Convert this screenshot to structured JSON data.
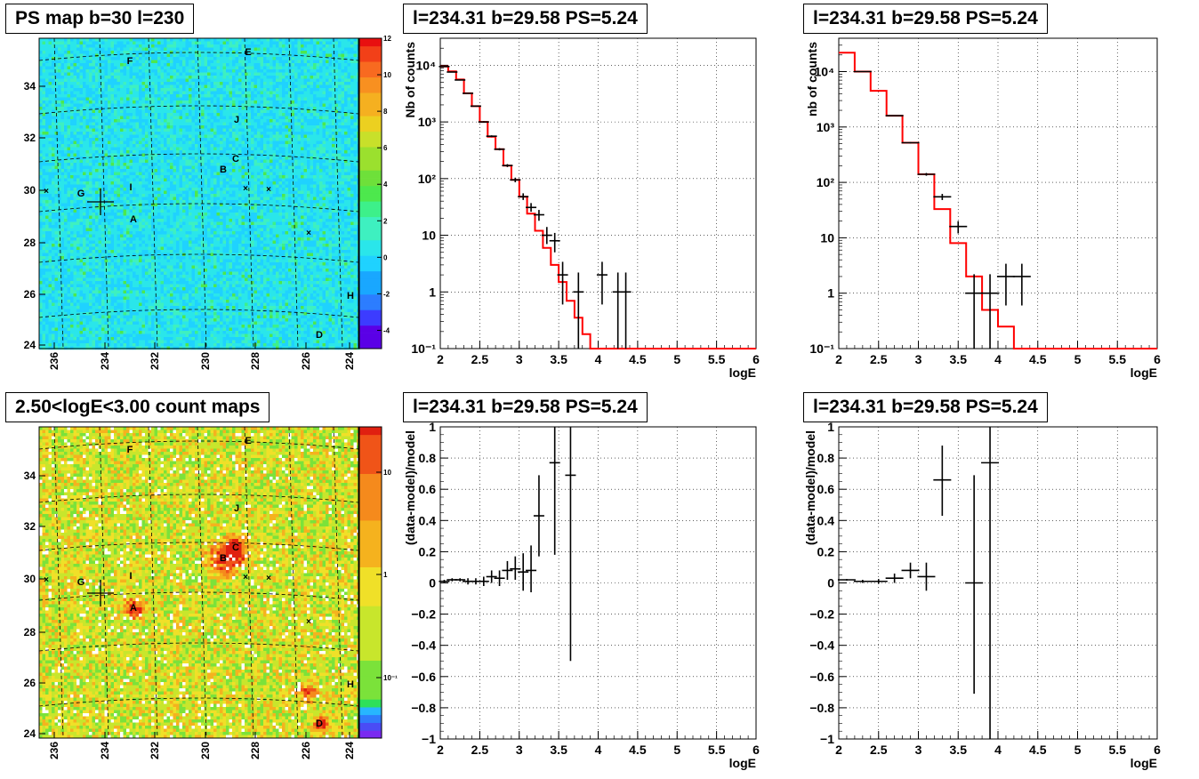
{
  "maps": [
    {
      "title": "PS map b=30 l=230",
      "palette": "ps",
      "x_ticks": [
        "236",
        "234",
        "232",
        "230",
        "228",
        "226",
        "224"
      ],
      "y_ticks": [
        "24",
        "26",
        "28",
        "30",
        "32",
        "34"
      ],
      "colorbar_ticks": [
        "-4",
        "-2",
        "0",
        "2",
        "4",
        "6",
        "8",
        "10",
        "12"
      ],
      "colorbar_range": [
        -5,
        12
      ],
      "sources": [
        "F",
        "E",
        "J",
        "C",
        "B",
        "G",
        "I",
        "A",
        "H",
        "D"
      ]
    },
    {
      "title": "2.50<logE<3.00 count maps",
      "palette": "counts",
      "x_ticks": [
        "236",
        "234",
        "232",
        "230",
        "228",
        "226",
        "224"
      ],
      "y_ticks": [
        "24",
        "26",
        "28",
        "30",
        "32",
        "34"
      ],
      "colorbar_ticks": [
        "10",
        "1",
        "10⁻¹"
      ],
      "colorbar_log": true,
      "sources": [
        "F",
        "E",
        "J",
        "C",
        "B",
        "G",
        "I",
        "A",
        "H",
        "D"
      ]
    }
  ],
  "colors": {
    "model": "#ff0000",
    "data": "#000000",
    "grid": "#000000"
  },
  "chart_data": [
    {
      "type": "line",
      "title": "l=234.31 b=29.58 PS=5.24",
      "xlabel": "logE",
      "ylabel": "Nb of counts",
      "xlim": [
        2,
        6
      ],
      "ylim": [
        0.1,
        30000
      ],
      "ylog": true,
      "grid": true,
      "x_ticks": [
        "2",
        "2.5",
        "3",
        "3.5",
        "4",
        "4.5",
        "5",
        "5.5",
        "6"
      ],
      "y_ticks": [
        "10⁻¹",
        "1",
        "10",
        "10²",
        "10³",
        "10⁴"
      ],
      "model_step": {
        "edges": [
          2.0,
          2.1,
          2.2,
          2.3,
          2.4,
          2.5,
          2.6,
          2.7,
          2.8,
          2.9,
          3.0,
          3.1,
          3.2,
          3.3,
          3.4,
          3.5,
          3.6,
          3.7,
          3.8,
          3.9,
          4.0,
          4.1,
          6.0
        ],
        "values": [
          9500,
          7800,
          5600,
          3200,
          1900,
          1000,
          550,
          330,
          170,
          95,
          48,
          24,
          12,
          6,
          3,
          1.5,
          0.7,
          0.35,
          0.18,
          0.1,
          0.07,
          0.1
        ]
      },
      "points": [
        {
          "x": 2.05,
          "y": 9500,
          "ylo": 9400,
          "yhi": 9600
        },
        {
          "x": 2.15,
          "y": 7600,
          "ylo": 7500,
          "yhi": 7700
        },
        {
          "x": 2.25,
          "y": 5500,
          "ylo": 5400,
          "yhi": 5600
        },
        {
          "x": 2.35,
          "y": 3200,
          "ylo": 3150,
          "yhi": 3250
        },
        {
          "x": 2.45,
          "y": 1900,
          "ylo": 1860,
          "yhi": 1940
        },
        {
          "x": 2.55,
          "y": 1000,
          "ylo": 970,
          "yhi": 1030
        },
        {
          "x": 2.65,
          "y": 560,
          "ylo": 540,
          "yhi": 580
        },
        {
          "x": 2.75,
          "y": 330,
          "ylo": 315,
          "yhi": 345
        },
        {
          "x": 2.85,
          "y": 170,
          "ylo": 160,
          "yhi": 180
        },
        {
          "x": 2.95,
          "y": 95,
          "ylo": 86,
          "yhi": 104
        },
        {
          "x": 3.05,
          "y": 48,
          "ylo": 42,
          "yhi": 55
        },
        {
          "x": 3.15,
          "y": 31,
          "ylo": 26,
          "yhi": 37
        },
        {
          "x": 3.25,
          "y": 23,
          "ylo": 18,
          "yhi": 28
        },
        {
          "x": 3.35,
          "y": 10,
          "ylo": 7,
          "yhi": 14
        },
        {
          "x": 3.45,
          "y": 8,
          "ylo": 5,
          "yhi": 11
        },
        {
          "x": 3.55,
          "y": 2,
          "ylo": 0.6,
          "yhi": 3.4
        },
        {
          "x": 3.75,
          "y": 1,
          "ylo": 0.1,
          "yhi": 2.2
        },
        {
          "x": 4.05,
          "y": 2,
          "ylo": 0.6,
          "yhi": 3.4
        },
        {
          "x": 4.25,
          "y": 1,
          "ylo": 0.1,
          "yhi": 2.2
        },
        {
          "x": 4.35,
          "y": 1,
          "ylo": 0.1,
          "yhi": 2.2
        }
      ]
    },
    {
      "type": "line",
      "title": "l=234.31 b=29.58 PS=5.24",
      "xlabel": "logE",
      "ylabel": "nb of counts",
      "xlim": [
        2,
        6
      ],
      "ylim": [
        0.1,
        40000
      ],
      "ylog": true,
      "grid": true,
      "x_ticks": [
        "2",
        "2.5",
        "3",
        "3.5",
        "4",
        "4.5",
        "5",
        "5.5",
        "6"
      ],
      "y_ticks": [
        "10⁻¹",
        "1",
        "10",
        "10²",
        "10³",
        "10⁴"
      ],
      "model_step": {
        "edges": [
          2.0,
          2.2,
          2.4,
          2.6,
          2.8,
          3.0,
          3.2,
          3.4,
          3.6,
          3.8,
          4.0,
          4.2,
          6.0
        ],
        "values": [
          22000,
          10000,
          4500,
          1600,
          520,
          140,
          33,
          8,
          2,
          0.5,
          0.25,
          0.1
        ]
      },
      "points": [
        {
          "x": 2.3,
          "y": 10000,
          "ylo": 9900,
          "yhi": 10100
        },
        {
          "x": 2.7,
          "y": 1600,
          "ylo": 1580,
          "yhi": 1620
        },
        {
          "x": 2.9,
          "y": 520,
          "ylo": 505,
          "yhi": 535
        },
        {
          "x": 3.1,
          "y": 140,
          "ylo": 132,
          "yhi": 148
        },
        {
          "x": 3.3,
          "y": 55,
          "ylo": 48,
          "yhi": 62
        },
        {
          "x": 3.5,
          "y": 16,
          "ylo": 12,
          "yhi": 20
        },
        {
          "x": 3.7,
          "y": 1,
          "ylo": 0.1,
          "yhi": 2.2
        },
        {
          "x": 3.9,
          "y": 1,
          "ylo": 0.1,
          "yhi": 2.2
        },
        {
          "x": 4.1,
          "y": 2,
          "ylo": 0.6,
          "yhi": 3.4
        },
        {
          "x": 4.3,
          "y": 2,
          "ylo": 0.6,
          "yhi": 3.4
        }
      ]
    },
    {
      "type": "scatter",
      "title": "l=234.31 b=29.58 PS=5.24",
      "xlabel": "logE",
      "ylabel": "(data-model)/model",
      "xlim": [
        2,
        6
      ],
      "ylim": [
        -1,
        1
      ],
      "ylog": false,
      "grid": true,
      "x_ticks": [
        "2",
        "2.5",
        "3",
        "3.5",
        "4",
        "4.5",
        "5",
        "5.5",
        "6"
      ],
      "y_ticks": [
        "−1",
        "−0.8",
        "−0.6",
        "−0.4",
        "−0.2",
        "0",
        "0.2",
        "0.4",
        "0.6",
        "0.8",
        "1"
      ],
      "points": [
        {
          "x": 2.05,
          "y": 0.01,
          "ylo": 0.0,
          "yhi": 0.02
        },
        {
          "x": 2.15,
          "y": 0.02,
          "ylo": 0.01,
          "yhi": 0.03
        },
        {
          "x": 2.25,
          "y": 0.02,
          "ylo": 0.01,
          "yhi": 0.03
        },
        {
          "x": 2.35,
          "y": 0.01,
          "ylo": -0.01,
          "yhi": 0.03
        },
        {
          "x": 2.45,
          "y": 0.01,
          "ylo": -0.01,
          "yhi": 0.03
        },
        {
          "x": 2.55,
          "y": 0.01,
          "ylo": -0.02,
          "yhi": 0.04
        },
        {
          "x": 2.65,
          "y": 0.04,
          "ylo": 0.0,
          "yhi": 0.08
        },
        {
          "x": 2.75,
          "y": 0.03,
          "ylo": -0.02,
          "yhi": 0.08
        },
        {
          "x": 2.85,
          "y": 0.08,
          "ylo": 0.02,
          "yhi": 0.14
        },
        {
          "x": 2.95,
          "y": 0.09,
          "ylo": 0.02,
          "yhi": 0.17
        },
        {
          "x": 3.05,
          "y": 0.07,
          "ylo": -0.05,
          "yhi": 0.19
        },
        {
          "x": 3.15,
          "y": 0.08,
          "ylo": -0.06,
          "yhi": 0.24
        },
        {
          "x": 3.25,
          "y": 0.43,
          "ylo": 0.17,
          "yhi": 0.69
        },
        {
          "x": 3.45,
          "y": 0.77,
          "ylo": 0.18,
          "yhi": 1.0
        },
        {
          "x": 3.65,
          "y": 0.69,
          "ylo": -0.5,
          "yhi": 1.0
        }
      ]
    },
    {
      "type": "scatter",
      "title": "l=234.31 b=29.58 PS=5.24",
      "xlabel": "logE",
      "ylabel": "(data-model)/model",
      "xlim": [
        2,
        6
      ],
      "ylim": [
        -1,
        1
      ],
      "ylog": false,
      "grid": true,
      "x_ticks": [
        "2",
        "2.5",
        "3",
        "3.5",
        "4",
        "4.5",
        "5",
        "5.5",
        "6"
      ],
      "y_ticks": [
        "−1",
        "−0.8",
        "−0.6",
        "−0.4",
        "−0.2",
        "0",
        "0.2",
        "0.4",
        "0.6",
        "0.8",
        "1"
      ],
      "points": [
        {
          "x": 2.1,
          "y": 0.02,
          "ylo": 0.015,
          "yhi": 0.025
        },
        {
          "x": 2.3,
          "y": 0.01,
          "ylo": 0.0,
          "yhi": 0.02
        },
        {
          "x": 2.5,
          "y": 0.01,
          "ylo": -0.005,
          "yhi": 0.025
        },
        {
          "x": 2.7,
          "y": 0.03,
          "ylo": 0.0,
          "yhi": 0.06
        },
        {
          "x": 2.9,
          "y": 0.08,
          "ylo": 0.03,
          "yhi": 0.13
        },
        {
          "x": 3.1,
          "y": 0.04,
          "ylo": -0.05,
          "yhi": 0.13
        },
        {
          "x": 3.3,
          "y": 0.66,
          "ylo": 0.43,
          "yhi": 0.88
        },
        {
          "x": 3.7,
          "y": 0.0,
          "ylo": -0.71,
          "yhi": 0.69
        },
        {
          "x": 3.9,
          "y": 0.77,
          "ylo": -1.0,
          "yhi": 1.0
        }
      ]
    }
  ]
}
